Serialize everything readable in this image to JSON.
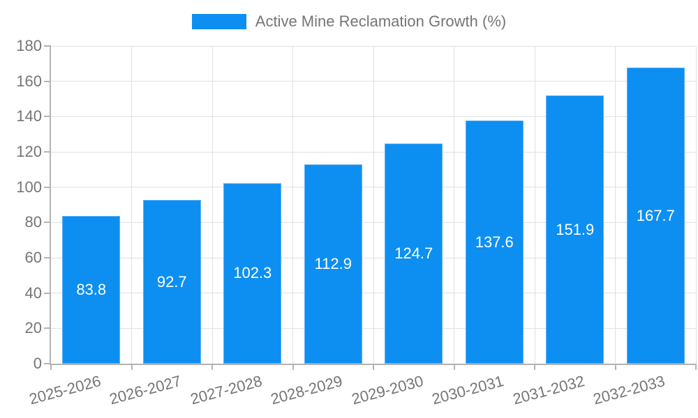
{
  "chart_data": {
    "type": "bar",
    "title": "",
    "legend": {
      "label": "Active Mine Reclamation Growth (%)",
      "position": "top-center"
    },
    "categories": [
      "2025-2026",
      "2026-2027",
      "2027-2028",
      "2028-2029",
      "2029-2030",
      "2030-2031",
      "2031-2032",
      "2032-2033"
    ],
    "values": [
      83.8,
      92.7,
      102.3,
      112.9,
      124.7,
      137.6,
      151.9,
      167.7
    ],
    "value_labels": [
      "83.8",
      "92.7",
      "102.3",
      "112.9",
      "124.7",
      "137.6",
      "151.9",
      "167.7"
    ],
    "xlabel": "",
    "ylabel": "",
    "ylim": [
      0,
      180
    ],
    "yticks": [
      0,
      20,
      40,
      60,
      80,
      100,
      120,
      140,
      160,
      180
    ],
    "grid": true,
    "value_labels_position": "inside-center",
    "xlabel_rotation_deg": -15,
    "colors": {
      "bar": "#0d8ff2",
      "bar_edge": "#5db0f6",
      "axis_line": "#b3b3b3",
      "gridline": "#e0e0e0",
      "tick_label_text": "#757575",
      "legend_text": "#757575",
      "value_label_text": "#ffffff",
      "background": "#ffffff"
    }
  }
}
